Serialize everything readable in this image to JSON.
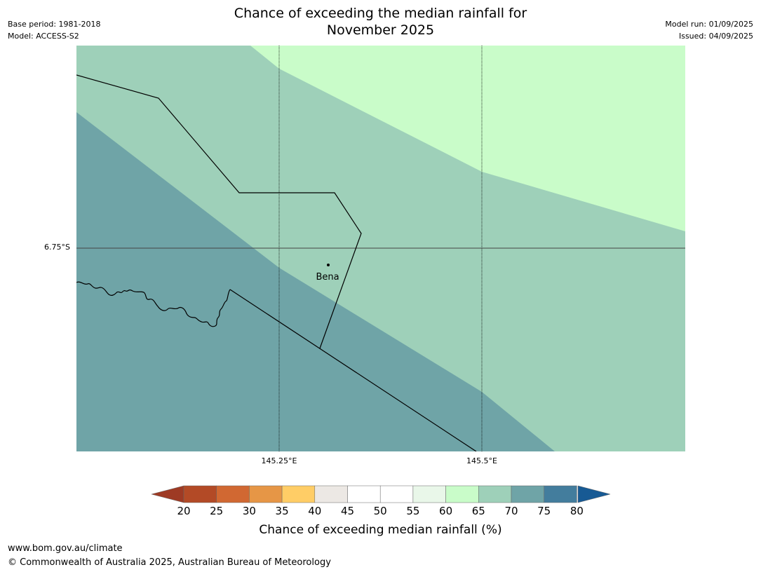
{
  "title": {
    "line1": "Chance of exceeding the median rainfall for",
    "line2": "November 2025"
  },
  "meta": {
    "base_period": "Base period: 1981-2018",
    "model": "Model: ACCESS-S2",
    "model_run": "Model run: 01/09/2025",
    "issued": "Issued: 04/09/2025"
  },
  "map": {
    "longitude_ticks": [
      "145.25°E",
      "145.5°E"
    ],
    "latitude_ticks": [
      "6.75°S"
    ],
    "town": {
      "name": "Bena"
    },
    "zone_colors": {
      "band_60_65": "#c9fcc9",
      "band_65_70": "#9ed0b9",
      "band_70_75": "#6fa4a7"
    }
  },
  "colorbar": {
    "label": "Chance of exceeding median rainfall (%)",
    "ticks": [
      "20",
      "25",
      "30",
      "35",
      "40",
      "45",
      "50",
      "55",
      "60",
      "65",
      "70",
      "75",
      "80"
    ],
    "under_color": "#9e3a24",
    "over_color": "#175a94",
    "colors": [
      "#b34a26",
      "#d16832",
      "#e69646",
      "#ffcd66",
      "#ece8e4",
      "#ffffff",
      "#ffffff",
      "#e9f7e9",
      "#c9fcc9",
      "#9ed0b9",
      "#6fa4a7",
      "#437d9d"
    ]
  },
  "footer": {
    "url": "www.bom.gov.au/climate",
    "copyright": "© Commonwealth of Australia 2025, Australian Bureau of Meteorology"
  }
}
